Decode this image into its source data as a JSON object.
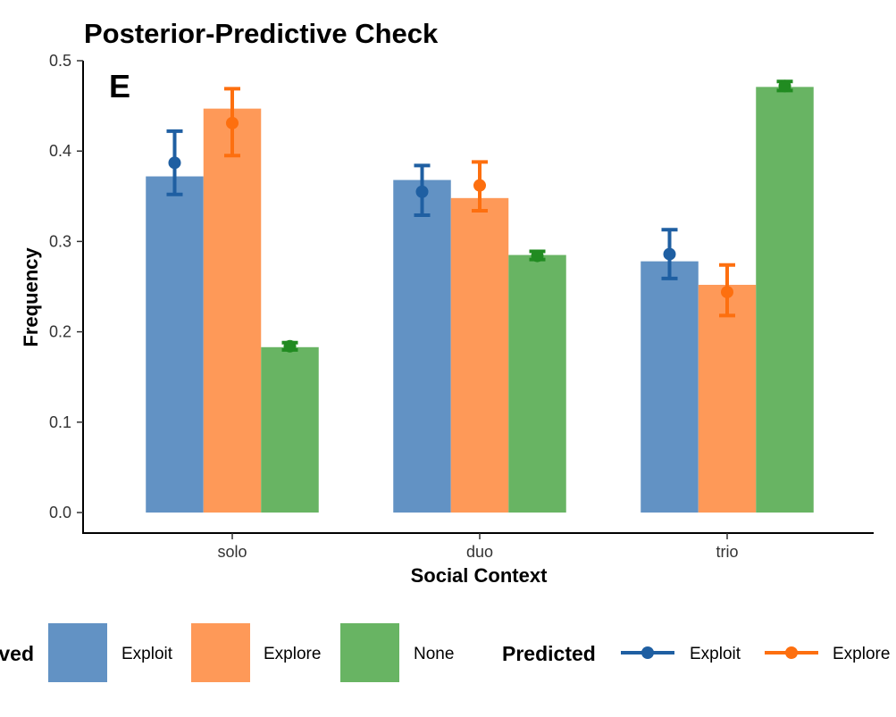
{
  "chart_data": {
    "type": "bar",
    "title": "Posterior-Predictive Check",
    "panel_label": "E",
    "xlabel": "Social Context",
    "ylabel": "Frequency",
    "categories": [
      "solo",
      "duo",
      "trio"
    ],
    "ylim": [
      0,
      0.5
    ],
    "yticks": [
      "0.0",
      "0.1",
      "0.2",
      "0.3",
      "0.4",
      "0.5"
    ],
    "grid": false,
    "series": [
      {
        "name": "Exploit",
        "color": "#6292c4",
        "values": [
          0.372,
          0.368,
          0.278
        ]
      },
      {
        "name": "Explore",
        "color": "#fe9958",
        "values": [
          0.447,
          0.348,
          0.252
        ]
      },
      {
        "name": "None",
        "color": "#68b463",
        "values": [
          0.183,
          0.285,
          0.471
        ]
      }
    ],
    "predicted": [
      {
        "name": "Exploit",
        "color": "#1f5fa2",
        "mean": [
          0.387,
          0.355,
          0.286
        ],
        "lower": [
          0.352,
          0.329,
          0.259
        ],
        "upper": [
          0.422,
          0.384,
          0.313
        ]
      },
      {
        "name": "Explore",
        "color": "#fd6f0f",
        "mean": [
          0.431,
          0.362,
          0.244
        ],
        "lower": [
          0.395,
          0.334,
          0.218
        ],
        "upper": [
          0.469,
          0.388,
          0.274
        ]
      },
      {
        "name": "None",
        "color": "#218b21",
        "mean": [
          0.184,
          0.284,
          0.472
        ],
        "lower": [
          0.18,
          0.28,
          0.467
        ],
        "upper": [
          0.188,
          0.289,
          0.477
        ]
      }
    ],
    "legend": {
      "placement": "bottom",
      "observed_title": "Observed",
      "observed_title_visible": "ved",
      "observed_items": [
        "Exploit",
        "Explore",
        "None"
      ],
      "predicted_title": "Predicted",
      "predicted_items": [
        "Exploit",
        "Explore"
      ]
    }
  }
}
